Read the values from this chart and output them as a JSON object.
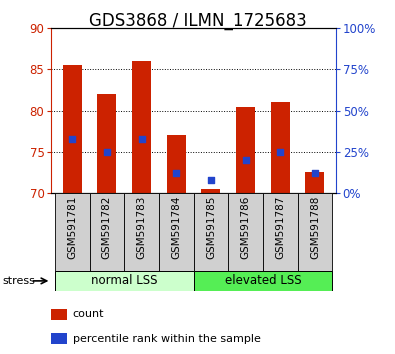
{
  "title": "GDS3868 / ILMN_1725683",
  "categories": [
    "GSM591781",
    "GSM591782",
    "GSM591783",
    "GSM591784",
    "GSM591785",
    "GSM591786",
    "GSM591787",
    "GSM591788"
  ],
  "red_values": [
    85.5,
    82.0,
    86.0,
    77.0,
    70.5,
    80.5,
    81.0,
    72.5
  ],
  "blue_values": [
    33,
    25,
    33,
    12,
    8,
    20,
    25,
    12
  ],
  "ylim_left": [
    70,
    90
  ],
  "ylim_right": [
    0,
    100
  ],
  "yticks_left": [
    70,
    75,
    80,
    85,
    90
  ],
  "yticks_right": [
    0,
    25,
    50,
    75,
    100
  ],
  "ytick_labels_right": [
    "0%",
    "25%",
    "50%",
    "75%",
    "100%"
  ],
  "group1_label": "normal LSS",
  "group2_label": "elevated LSS",
  "group1_count": 4,
  "group2_count": 4,
  "stress_label": "stress",
  "legend_red": "count",
  "legend_blue": "percentile rank within the sample",
  "bar_color_red": "#cc2200",
  "bar_color_blue": "#2244cc",
  "group1_color": "#ccffcc",
  "group2_color": "#55ee55",
  "xtick_bg": "#d0d0d0",
  "bar_bottom": 70,
  "bar_width": 0.55,
  "title_fontsize": 12,
  "axis_fontsize": 8.5,
  "label_fontsize": 8
}
